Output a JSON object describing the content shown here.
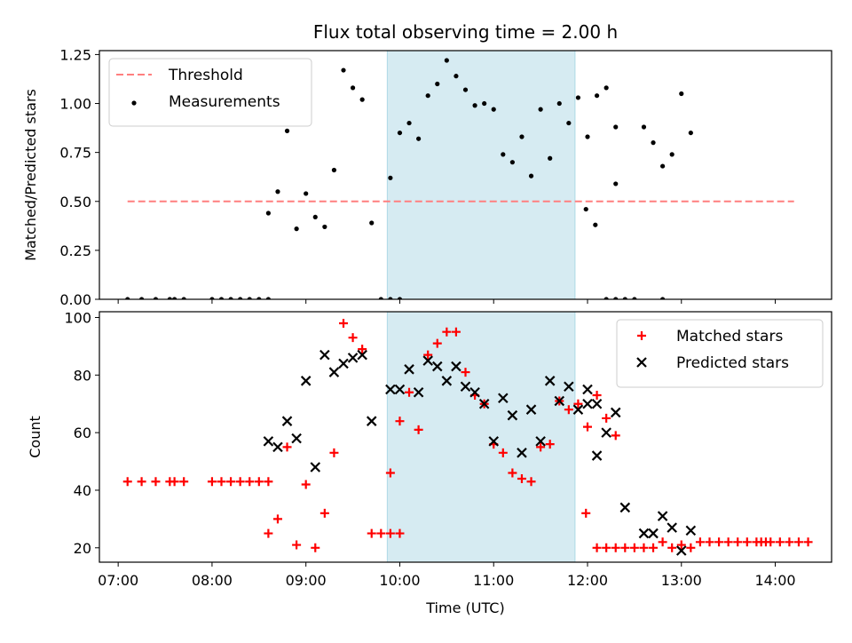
{
  "chart_data": [
    {
      "type": "scatter",
      "title": "Flux total observing time = 2.00 h",
      "xlabel": "",
      "ylabel": "Matched/Predicted stars",
      "xlim": [
        "06:48",
        "14:36"
      ],
      "ylim": [
        0,
        1.27
      ],
      "yticks": [
        "0.00",
        "0.25",
        "0.50",
        "0.75",
        "1.00",
        "1.25"
      ],
      "grid": false,
      "legend_position": "top-left",
      "highlight_span": [
        "09:52",
        "11:52"
      ],
      "highlight_color": "#add8e6",
      "threshold": {
        "name": "Threshold",
        "value": 0.5,
        "x_range": [
          "07:06",
          "14:12"
        ],
        "color": "#ff7f7f",
        "style": "dashed"
      },
      "series": [
        {
          "name": "Measurements",
          "color": "#000000",
          "marker": "dot",
          "points": [
            [
              "07:06",
              0
            ],
            [
              "07:15",
              0
            ],
            [
              "07:24",
              0
            ],
            [
              "07:33",
              0
            ],
            [
              "07:36",
              0
            ],
            [
              "07:42",
              0
            ],
            [
              "08:00",
              0
            ],
            [
              "08:06",
              0
            ],
            [
              "08:12",
              0
            ],
            [
              "08:18",
              0
            ],
            [
              "08:24",
              0
            ],
            [
              "08:30",
              0
            ],
            [
              "08:36",
              0
            ],
            [
              "08:36",
              0.44
            ],
            [
              "08:42",
              0.55
            ],
            [
              "08:48",
              0.86
            ],
            [
              "08:54",
              0.36
            ],
            [
              "09:00",
              0.54
            ],
            [
              "09:06",
              0.42
            ],
            [
              "09:12",
              0.37
            ],
            [
              "09:18",
              0.66
            ],
            [
              "09:24",
              1.17
            ],
            [
              "09:30",
              1.08
            ],
            [
              "09:36",
              1.02
            ],
            [
              "09:42",
              0.39
            ],
            [
              "09:48",
              0
            ],
            [
              "09:54",
              0
            ],
            [
              "10:00",
              0
            ],
            [
              "09:54",
              0.62
            ],
            [
              "10:00",
              0.85
            ],
            [
              "10:06",
              0.9
            ],
            [
              "10:12",
              0.82
            ],
            [
              "10:18",
              1.04
            ],
            [
              "10:24",
              1.1
            ],
            [
              "10:30",
              1.22
            ],
            [
              "10:36",
              1.14
            ],
            [
              "10:42",
              1.07
            ],
            [
              "10:48",
              0.99
            ],
            [
              "10:54",
              1.0
            ],
            [
              "11:00",
              0.97
            ],
            [
              "11:06",
              0.74
            ],
            [
              "11:12",
              0.7
            ],
            [
              "11:18",
              0.83
            ],
            [
              "11:24",
              0.63
            ],
            [
              "11:30",
              0.97
            ],
            [
              "11:36",
              0.72
            ],
            [
              "11:42",
              1.0
            ],
            [
              "11:48",
              0.9
            ],
            [
              "11:54",
              1.03
            ],
            [
              "12:00",
              0.83
            ],
            [
              "12:06",
              1.04
            ],
            [
              "12:12",
              1.08
            ],
            [
              "12:18",
              0.88
            ],
            [
              "11:59",
              0.46
            ],
            [
              "12:05",
              0.38
            ],
            [
              "12:12",
              0
            ],
            [
              "12:18",
              0
            ],
            [
              "12:24",
              0
            ],
            [
              "12:30",
              0
            ],
            [
              "12:48",
              0
            ],
            [
              "12:18",
              0.59
            ],
            [
              "12:36",
              0.88
            ],
            [
              "12:42",
              0.8
            ],
            [
              "12:48",
              0.68
            ],
            [
              "12:54",
              0.74
            ],
            [
              "13:00",
              1.05
            ],
            [
              "13:06",
              0.85
            ]
          ]
        }
      ]
    },
    {
      "type": "scatter",
      "title": "",
      "xlabel": "Time (UTC)",
      "ylabel": "Count",
      "xlim": [
        "06:48",
        "14:36"
      ],
      "ylim": [
        15,
        102
      ],
      "yticks": [
        "20",
        "40",
        "60",
        "80",
        "100"
      ],
      "xticks": [
        "07:00",
        "08:00",
        "09:00",
        "10:00",
        "11:00",
        "12:00",
        "13:00",
        "14:00"
      ],
      "grid": false,
      "legend_position": "top-right",
      "highlight_span": [
        "09:52",
        "11:52"
      ],
      "highlight_color": "#add8e6",
      "series": [
        {
          "name": "Matched stars",
          "color": "#ff0000",
          "marker": "plus",
          "points": [
            [
              "07:06",
              43
            ],
            [
              "07:15",
              43
            ],
            [
              "07:24",
              43
            ],
            [
              "07:33",
              43
            ],
            [
              "07:36",
              43
            ],
            [
              "07:42",
              43
            ],
            [
              "08:00",
              43
            ],
            [
              "08:06",
              43
            ],
            [
              "08:12",
              43
            ],
            [
              "08:18",
              43
            ],
            [
              "08:24",
              43
            ],
            [
              "08:30",
              43
            ],
            [
              "08:36",
              43
            ],
            [
              "08:36",
              25
            ],
            [
              "08:42",
              30
            ],
            [
              "08:48",
              55
            ],
            [
              "08:54",
              21
            ],
            [
              "09:00",
              42
            ],
            [
              "09:06",
              20
            ],
            [
              "09:12",
              32
            ],
            [
              "09:18",
              53
            ],
            [
              "09:24",
              98
            ],
            [
              "09:30",
              93
            ],
            [
              "09:36",
              89
            ],
            [
              "09:42",
              25
            ],
            [
              "09:48",
              25
            ],
            [
              "09:54",
              25
            ],
            [
              "10:00",
              25
            ],
            [
              "09:54",
              46
            ],
            [
              "10:00",
              64
            ],
            [
              "10:06",
              74
            ],
            [
              "10:12",
              61
            ],
            [
              "10:18",
              87
            ],
            [
              "10:24",
              91
            ],
            [
              "10:30",
              95
            ],
            [
              "10:36",
              95
            ],
            [
              "10:42",
              81
            ],
            [
              "10:48",
              73
            ],
            [
              "10:54",
              70
            ],
            [
              "11:00",
              56
            ],
            [
              "11:06",
              53
            ],
            [
              "11:12",
              46
            ],
            [
              "11:18",
              44
            ],
            [
              "11:24",
              43
            ],
            [
              "11:30",
              55
            ],
            [
              "11:36",
              56
            ],
            [
              "11:42",
              71
            ],
            [
              "11:48",
              68
            ],
            [
              "11:54",
              70
            ],
            [
              "12:00",
              62
            ],
            [
              "12:06",
              73
            ],
            [
              "12:12",
              65
            ],
            [
              "12:18",
              59
            ],
            [
              "11:59",
              32
            ],
            [
              "12:06",
              20
            ],
            [
              "12:12",
              20
            ],
            [
              "12:18",
              20
            ],
            [
              "12:24",
              20
            ],
            [
              "12:30",
              20
            ],
            [
              "12:36",
              20
            ],
            [
              "12:42",
              20
            ],
            [
              "12:48",
              22
            ],
            [
              "12:54",
              20
            ],
            [
              "13:00",
              21
            ],
            [
              "13:06",
              20
            ],
            [
              "13:12",
              22
            ],
            [
              "13:18",
              22
            ],
            [
              "13:24",
              22
            ],
            [
              "13:30",
              22
            ],
            [
              "13:36",
              22
            ],
            [
              "13:42",
              22
            ],
            [
              "13:48",
              22
            ],
            [
              "13:54",
              22
            ],
            [
              "13:51",
              22
            ],
            [
              "13:57",
              22
            ],
            [
              "14:03",
              22
            ],
            [
              "14:09",
              22
            ],
            [
              "14:15",
              22
            ],
            [
              "14:21",
              22
            ]
          ]
        },
        {
          "name": "Predicted stars",
          "color": "#000000",
          "marker": "x",
          "points": [
            [
              "08:36",
              57
            ],
            [
              "08:42",
              55
            ],
            [
              "08:48",
              64
            ],
            [
              "08:54",
              58
            ],
            [
              "09:00",
              78
            ],
            [
              "09:06",
              48
            ],
            [
              "09:12",
              87
            ],
            [
              "09:18",
              81
            ],
            [
              "09:24",
              84
            ],
            [
              "09:30",
              86
            ],
            [
              "09:36",
              87
            ],
            [
              "09:42",
              64
            ],
            [
              "09:54",
              75
            ],
            [
              "10:00",
              75
            ],
            [
              "10:06",
              82
            ],
            [
              "10:12",
              74
            ],
            [
              "10:18",
              85
            ],
            [
              "10:24",
              83
            ],
            [
              "10:30",
              78
            ],
            [
              "10:36",
              83
            ],
            [
              "10:42",
              76
            ],
            [
              "10:48",
              74
            ],
            [
              "10:54",
              70
            ],
            [
              "11:00",
              57
            ],
            [
              "11:06",
              72
            ],
            [
              "11:12",
              66
            ],
            [
              "11:18",
              53
            ],
            [
              "11:24",
              68
            ],
            [
              "11:30",
              57
            ],
            [
              "11:36",
              78
            ],
            [
              "11:42",
              71
            ],
            [
              "11:48",
              76
            ],
            [
              "11:54",
              68
            ],
            [
              "12:00",
              75
            ],
            [
              "12:06",
              70
            ],
            [
              "12:12",
              60
            ],
            [
              "12:18",
              67
            ],
            [
              "12:00",
              70
            ],
            [
              "12:06",
              52
            ],
            [
              "12:24",
              34
            ],
            [
              "12:36",
              25
            ],
            [
              "12:42",
              25
            ],
            [
              "12:48",
              31
            ],
            [
              "12:54",
              27
            ],
            [
              "13:00",
              19
            ],
            [
              "13:06",
              26
            ]
          ]
        }
      ]
    }
  ]
}
